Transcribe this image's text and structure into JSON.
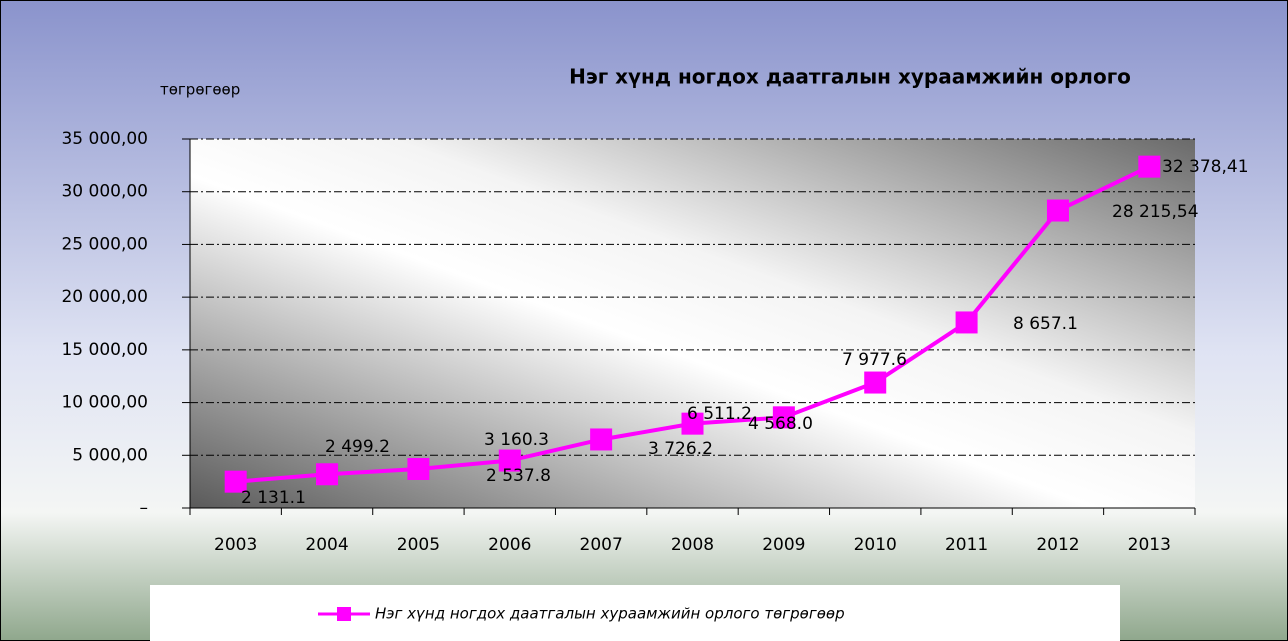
{
  "chart_data": {
    "type": "line",
    "title": "Нэг хүнд ногдох даатгалын хураамжийн орлого",
    "y_axis_label": "төгрөгөөр",
    "categories": [
      "2003",
      "2004",
      "2005",
      "2006",
      "2007",
      "2008",
      "2009",
      "2010",
      "2011",
      "2012",
      "2013"
    ],
    "series": [
      {
        "name": "Нэг хүнд ногдох даатгалын хураамжийн орлого төгрөгөөр",
        "color": "#ff00ff",
        "values": [
          2500,
          3200,
          3700,
          4500,
          6500,
          8000,
          8600,
          11900,
          17600,
          28215.54,
          32378.41
        ]
      }
    ],
    "annotations": [
      "2 131.1",
      "2 499.2",
      "3 160.3",
      "2 537.8",
      "3 726.2",
      "6 511.2",
      "4 568.0",
      "7 977.6",
      "8 657.1",
      "28 215,54",
      "32 378,41"
    ],
    "ylim": [
      0,
      35000
    ],
    "yticks": [
      {
        "value": 0,
        "label": "–"
      },
      {
        "value": 5000,
        "label": "5 000,00"
      },
      {
        "value": 10000,
        "label": "10 000,00"
      },
      {
        "value": 15000,
        "label": "15 000,00"
      },
      {
        "value": 20000,
        "label": "20 000,00"
      },
      {
        "value": 25000,
        "label": "25 000,00"
      },
      {
        "value": 30000,
        "label": "30 000,00"
      },
      {
        "value": 35000,
        "label": "35 000,00"
      }
    ],
    "grid": true,
    "legend": "bottom"
  }
}
